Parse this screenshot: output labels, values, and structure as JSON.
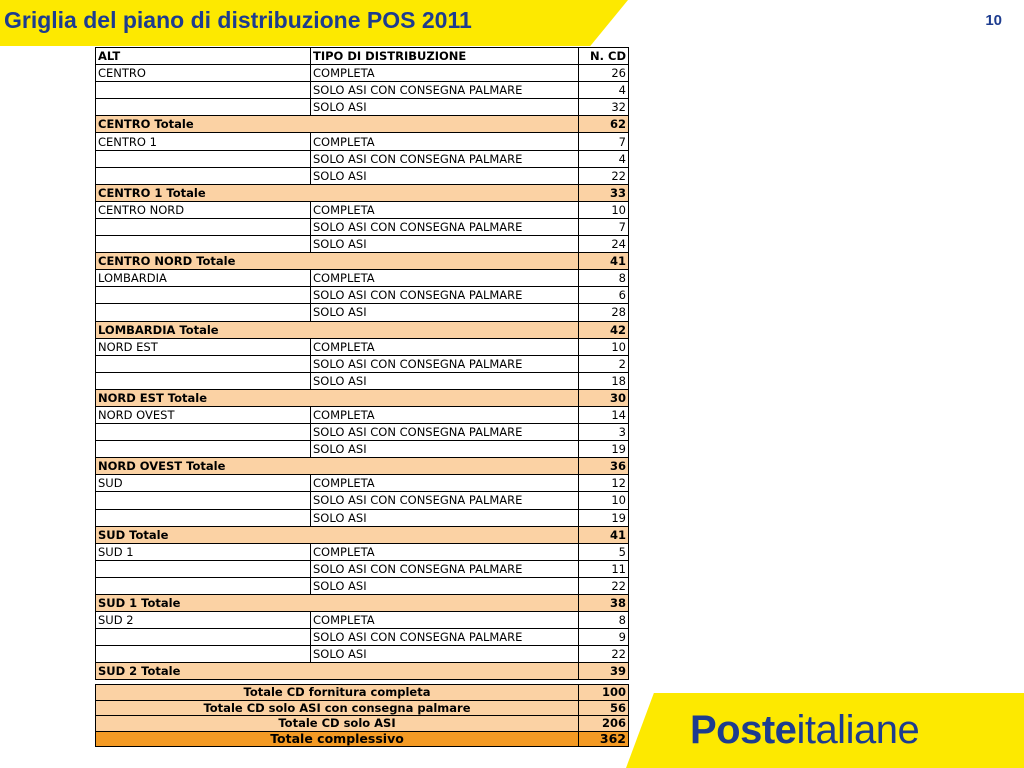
{
  "header": {
    "title": "Griglia del piano di distribuzione POS 2011",
    "page_number": "10"
  },
  "table": {
    "headers": [
      "ALT",
      "TIPO DI DISTRIBUZIONE",
      "N. CD"
    ],
    "rows": [
      {
        "type": "detail",
        "alt": "CENTRO",
        "tipo": "COMPLETA",
        "n": "26"
      },
      {
        "type": "detail",
        "alt": "",
        "tipo": "SOLO ASI CON CONSEGNA PALMARE",
        "n": "4"
      },
      {
        "type": "detail",
        "alt": "",
        "tipo": "SOLO ASI",
        "n": "32"
      },
      {
        "type": "subtotal",
        "alt": "CENTRO Totale",
        "tipo": "",
        "n": "62"
      },
      {
        "type": "detail",
        "alt": "CENTRO 1",
        "tipo": "COMPLETA",
        "n": "7"
      },
      {
        "type": "detail",
        "alt": "",
        "tipo": "SOLO ASI CON CONSEGNA PALMARE",
        "n": "4"
      },
      {
        "type": "detail",
        "alt": "",
        "tipo": "SOLO ASI",
        "n": "22"
      },
      {
        "type": "subtotal",
        "alt": "CENTRO 1 Totale",
        "tipo": "",
        "n": "33"
      },
      {
        "type": "detail",
        "alt": "CENTRO NORD",
        "tipo": "COMPLETA",
        "n": "10"
      },
      {
        "type": "detail",
        "alt": "",
        "tipo": "SOLO ASI CON CONSEGNA PALMARE",
        "n": "7"
      },
      {
        "type": "detail",
        "alt": "",
        "tipo": "SOLO ASI",
        "n": "24"
      },
      {
        "type": "subtotal",
        "alt": "CENTRO NORD Totale",
        "tipo": "",
        "n": "41"
      },
      {
        "type": "detail",
        "alt": "LOMBARDIA",
        "tipo": "COMPLETA",
        "n": "8"
      },
      {
        "type": "detail",
        "alt": "",
        "tipo": "SOLO ASI CON CONSEGNA PALMARE",
        "n": "6"
      },
      {
        "type": "detail",
        "alt": "",
        "tipo": "SOLO ASI",
        "n": "28"
      },
      {
        "type": "subtotal",
        "alt": "LOMBARDIA Totale",
        "tipo": "",
        "n": "42"
      },
      {
        "type": "detail",
        "alt": "NORD EST",
        "tipo": "COMPLETA",
        "n": "10"
      },
      {
        "type": "detail",
        "alt": "",
        "tipo": "SOLO ASI CON CONSEGNA PALMARE",
        "n": "2"
      },
      {
        "type": "detail",
        "alt": "",
        "tipo": "SOLO ASI",
        "n": "18"
      },
      {
        "type": "subtotal",
        "alt": "NORD EST Totale",
        "tipo": "",
        "n": "30"
      },
      {
        "type": "detail",
        "alt": "NORD OVEST",
        "tipo": "COMPLETA",
        "n": "14"
      },
      {
        "type": "detail",
        "alt": "",
        "tipo": "SOLO ASI CON CONSEGNA PALMARE",
        "n": "3"
      },
      {
        "type": "detail",
        "alt": "",
        "tipo": "SOLO ASI",
        "n": "19"
      },
      {
        "type": "subtotal",
        "alt": "NORD OVEST Totale",
        "tipo": "",
        "n": "36"
      },
      {
        "type": "detail",
        "alt": "SUD",
        "tipo": "COMPLETA",
        "n": "12"
      },
      {
        "type": "detail",
        "alt": "",
        "tipo": "SOLO ASI CON CONSEGNA PALMARE",
        "n": "10"
      },
      {
        "type": "detail",
        "alt": "",
        "tipo": "SOLO ASI",
        "n": "19"
      },
      {
        "type": "subtotal",
        "alt": "SUD Totale",
        "tipo": "",
        "n": "41"
      },
      {
        "type": "detail",
        "alt": "SUD 1",
        "tipo": "COMPLETA",
        "n": "5"
      },
      {
        "type": "detail",
        "alt": "",
        "tipo": "SOLO ASI CON CONSEGNA PALMARE",
        "n": "11"
      },
      {
        "type": "detail",
        "alt": "",
        "tipo": "SOLO ASI",
        "n": "22"
      },
      {
        "type": "subtotal",
        "alt": "SUD 1 Totale",
        "tipo": "",
        "n": "38"
      },
      {
        "type": "detail",
        "alt": "SUD 2",
        "tipo": "COMPLETA",
        "n": "8"
      },
      {
        "type": "detail",
        "alt": "",
        "tipo": "SOLO ASI CON CONSEGNA PALMARE",
        "n": "9"
      },
      {
        "type": "detail",
        "alt": "",
        "tipo": "SOLO ASI",
        "n": "22"
      },
      {
        "type": "subtotal",
        "alt": "SUD 2 Totale",
        "tipo": "",
        "n": "39"
      }
    ]
  },
  "summary": [
    {
      "label": "Totale CD fornitura completa",
      "value": "100"
    },
    {
      "label": "Totale CD solo ASI con consegna palmare",
      "value": "56"
    },
    {
      "label": "Totale CD solo ASI",
      "value": "206"
    },
    {
      "label": "Totale complessivo",
      "value": "362",
      "grand": true
    }
  ],
  "logo": {
    "bold": "Poste",
    "regular": "italiane"
  },
  "colors": {
    "brand_yellow": "#fde900",
    "brand_blue": "#1d3c8f",
    "subtotal_fill": "#fbd2a4",
    "grand_total_fill": "#f39a24"
  }
}
